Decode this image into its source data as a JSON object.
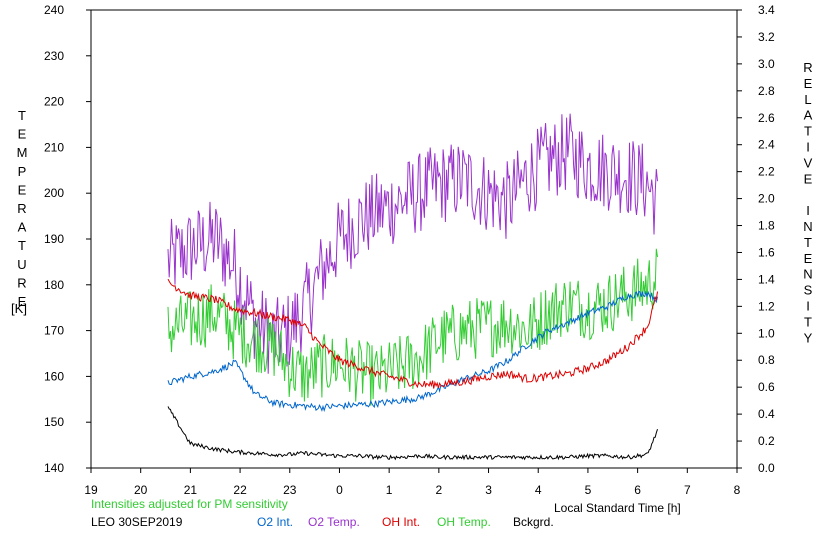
{
  "chart_data": {
    "type": "line",
    "x_axis": {
      "label": "Local Standard Time [h]",
      "ticks": [
        "19",
        "20",
        "21",
        "22",
        "23",
        "0",
        "1",
        "2",
        "3",
        "4",
        "5",
        "6",
        "7",
        "8"
      ]
    },
    "y_left": {
      "label": "TEMPERATURE",
      "unit": "[K]",
      "min": 140,
      "max": 240,
      "ticks": [
        "140",
        "150",
        "160",
        "170",
        "180",
        "190",
        "200",
        "210",
        "220",
        "230",
        "240"
      ]
    },
    "y_right": {
      "label": "RELATIVE INTENSITY",
      "min": 0.0,
      "max": 3.4,
      "ticks": [
        "0.0",
        "0.2",
        "0.4",
        "0.6",
        "0.8",
        "1.0",
        "1.2",
        "1.4",
        "1.6",
        "1.8",
        "2.0",
        "2.2",
        "2.4",
        "2.6",
        "2.8",
        "3.0",
        "3.2",
        "3.4"
      ]
    },
    "note": "Intensities adjusted for PM sensitivity",
    "station": "LEO 30SEP2019",
    "series": [
      {
        "name": "O2 Int.",
        "axis": "right",
        "color": "#0066cc",
        "x": [
          20.55,
          21.0,
          21.5,
          21.9,
          22.3,
          22.7,
          23.0,
          23.3,
          23.6,
          24.0,
          24.4,
          24.8,
          25.2,
          25.6,
          26.0,
          26.5,
          27.0,
          27.4,
          27.8,
          28.2,
          28.6,
          29.0,
          29.4,
          29.8,
          30.2,
          30.4
        ],
        "y": [
          0.63,
          0.68,
          0.72,
          0.78,
          0.55,
          0.48,
          0.47,
          0.46,
          0.45,
          0.46,
          0.47,
          0.48,
          0.5,
          0.52,
          0.58,
          0.66,
          0.72,
          0.8,
          0.92,
          1.02,
          1.08,
          1.15,
          1.2,
          1.28,
          1.3,
          1.25
        ]
      },
      {
        "name": "O2 Temp.",
        "axis": "left",
        "color": "#9933cc",
        "x": [
          20.55,
          21.0,
          21.5,
          21.9,
          22.3,
          22.7,
          23.0,
          23.3,
          23.6,
          24.0,
          24.4,
          24.8,
          25.2,
          25.6,
          26.0,
          26.5,
          27.0,
          27.4,
          27.8,
          28.2,
          28.6,
          29.0,
          29.4,
          29.8,
          30.2,
          30.4
        ],
        "y": [
          185,
          188,
          190,
          184,
          172,
          168,
          170,
          175,
          182,
          190,
          194,
          196,
          198,
          200,
          202,
          203,
          200,
          198,
          204,
          207,
          209,
          206,
          205,
          204,
          202,
          198
        ]
      },
      {
        "name": "OH Int.",
        "axis": "right",
        "color": "#dd0000",
        "x": [
          20.55,
          21.0,
          21.5,
          21.9,
          22.3,
          22.7,
          23.0,
          23.3,
          23.6,
          24.0,
          24.4,
          24.8,
          25.2,
          25.6,
          26.0,
          26.5,
          27.0,
          27.4,
          27.8,
          28.2,
          28.6,
          29.0,
          29.4,
          29.8,
          30.2,
          30.4
        ],
        "y": [
          1.38,
          1.28,
          1.25,
          1.18,
          1.15,
          1.12,
          1.1,
          1.05,
          0.92,
          0.8,
          0.75,
          0.7,
          0.66,
          0.62,
          0.62,
          0.64,
          0.68,
          0.7,
          0.66,
          0.68,
          0.7,
          0.74,
          0.8,
          0.9,
          1.05,
          1.3
        ]
      },
      {
        "name": "OH Temp.",
        "axis": "left",
        "color": "#33cc33",
        "x": [
          20.55,
          21.0,
          21.5,
          21.9,
          22.3,
          22.7,
          23.0,
          23.3,
          23.6,
          24.0,
          24.4,
          24.8,
          25.2,
          25.6,
          26.0,
          26.5,
          27.0,
          27.4,
          27.8,
          28.2,
          28.6,
          29.0,
          29.4,
          29.8,
          30.2,
          30.4
        ],
        "y": [
          170,
          172,
          174,
          170,
          168,
          166,
          162,
          160,
          162,
          163,
          161,
          160,
          162,
          164,
          168,
          170,
          171,
          172,
          170,
          174,
          176,
          175,
          176,
          178,
          180,
          182
        ]
      },
      {
        "name": "Bckgrd.",
        "axis": "right",
        "color": "#000000",
        "x": [
          20.55,
          21.0,
          21.5,
          21.9,
          22.3,
          22.7,
          23.0,
          23.3,
          23.6,
          24.0,
          24.4,
          24.8,
          25.2,
          25.6,
          26.0,
          26.5,
          27.0,
          27.4,
          27.8,
          28.2,
          28.6,
          29.0,
          29.4,
          29.8,
          30.2,
          30.4
        ],
        "y": [
          0.45,
          0.18,
          0.14,
          0.12,
          0.11,
          0.1,
          0.1,
          0.11,
          0.1,
          0.09,
          0.09,
          0.08,
          0.08,
          0.09,
          0.08,
          0.08,
          0.08,
          0.08,
          0.08,
          0.08,
          0.08,
          0.09,
          0.09,
          0.08,
          0.1,
          0.28
        ]
      }
    ]
  }
}
